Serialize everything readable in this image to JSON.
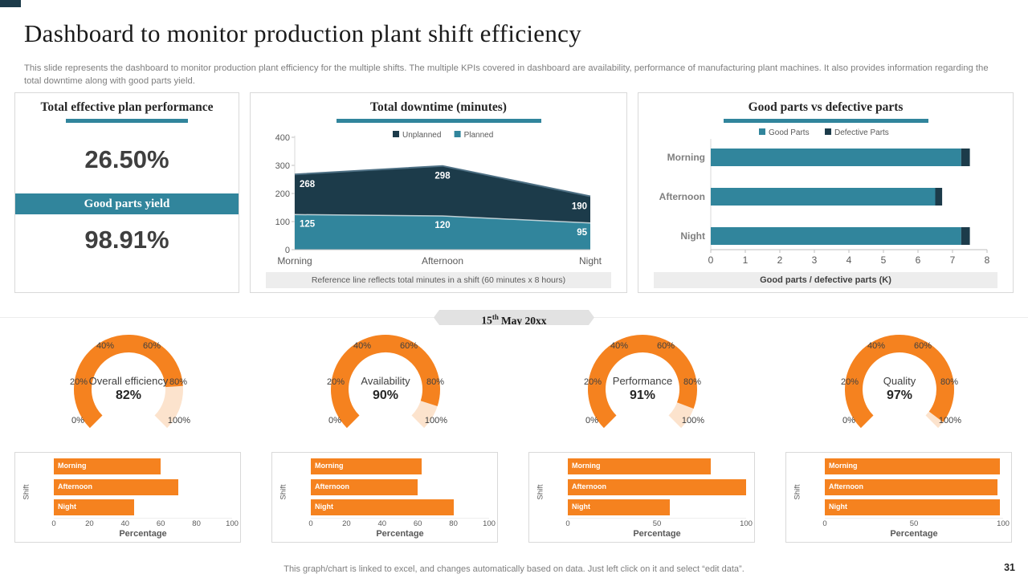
{
  "page": {
    "title": "Dashboard to monitor production plant shift efficiency",
    "subtitle": "This slide represents the dashboard to monitor production plant efficiency for the multiple shifts. The multiple KPIs covered in dashboard are availability, performance of manufacturing plant machines. It also provides information regarding the total downtime along with good parts yield.",
    "date": {
      "day": "15",
      "suffix": "th",
      "rest": "May 20xx"
    },
    "footer_note": "This graph/chart is linked to excel, and changes automatically based on data. Just left click on it and select “edit data”.",
    "page_number": "31"
  },
  "colors": {
    "teal": "#31859c",
    "dark_navy": "#1c3b4a",
    "orange": "#f5821f",
    "orange_light": "#fce3cd",
    "axis_text": "#595959",
    "category_text": "#7f7f7f"
  },
  "kpi_card": {
    "title": "Total effective plan performance",
    "value": "26.50%",
    "banner_label": "Good parts yield",
    "banner_value": "98.91%"
  },
  "chart_data": [
    {
      "id": "downtime",
      "type": "area",
      "title": "Total downtime (minutes)",
      "categories": [
        "Morning",
        "Afternoon",
        "Night"
      ],
      "series": [
        {
          "name": "Unplanned",
          "color": "dark_navy",
          "values": [
            268,
            298,
            190
          ]
        },
        {
          "name": "Planned",
          "color": "teal",
          "values": [
            125,
            120,
            95
          ]
        }
      ],
      "ylim": [
        0,
        400
      ],
      "yticks": [
        0,
        100,
        200,
        300,
        400
      ],
      "legend_position": "top",
      "caption": "Reference line reflects total minutes in a shift (60 minutes x 8 hours)"
    },
    {
      "id": "parts",
      "type": "bar-horizontal-stacked",
      "title": "Good parts vs defective parts",
      "categories": [
        "Morning",
        "Afternoon",
        "Night"
      ],
      "series": [
        {
          "name": "Good Parts",
          "color": "teal",
          "values": [
            7.25,
            6.5,
            7.25
          ]
        },
        {
          "name": "Defective Parts",
          "color": "dark_navy",
          "values": [
            0.25,
            0.2,
            0.25
          ]
        }
      ],
      "xlim": [
        0,
        8
      ],
      "xticks": [
        0,
        1,
        2,
        3,
        4,
        5,
        6,
        7,
        8
      ],
      "legend_position": "top",
      "caption": "Good parts / defective parts (K)"
    },
    {
      "id": "gauges",
      "type": "gauge",
      "tick_labels": [
        "0%",
        "20%",
        "40%",
        "60%",
        "80%",
        "100%"
      ],
      "items": [
        {
          "label": "Overall efficiency",
          "value": 82,
          "value_label": "82%"
        },
        {
          "label": "Availability",
          "value": 90,
          "value_label": "90%"
        },
        {
          "label": "Performance",
          "value": 91,
          "value_label": "91%"
        },
        {
          "label": "Quality",
          "value": 97,
          "value_label": "97%"
        }
      ]
    },
    {
      "id": "shift-bars",
      "type": "bar",
      "items": [
        {
          "ylabel": "Shift",
          "xlabel": "Percentage",
          "categories": [
            "Morning",
            "Afternoon",
            "Night"
          ],
          "values": [
            60,
            70,
            45
          ],
          "xticks": [
            0,
            20,
            40,
            60,
            80,
            100
          ],
          "narrow_labels": false
        },
        {
          "ylabel": "Shift",
          "xlabel": "Percentage",
          "categories": [
            "Morning",
            "Afternoon",
            "Night"
          ],
          "values": [
            62,
            60,
            80
          ],
          "xticks": [
            0,
            20,
            40,
            60,
            80,
            100
          ],
          "narrow_labels": false
        },
        {
          "ylabel": "Shift",
          "xlabel": "Percentage",
          "categories": [
            "Morning",
            "Afternoon",
            "Night"
          ],
          "values": [
            80,
            100,
            57
          ],
          "xticks": [
            0,
            50,
            100
          ],
          "narrow_labels": true
        },
        {
          "ylabel": "Shift",
          "xlabel": "Percentage",
          "categories": [
            "Morning",
            "Afternoon",
            "Night"
          ],
          "values": [
            98,
            97,
            98
          ],
          "xticks": [
            0,
            50,
            100
          ],
          "narrow_labels": true
        }
      ]
    }
  ]
}
